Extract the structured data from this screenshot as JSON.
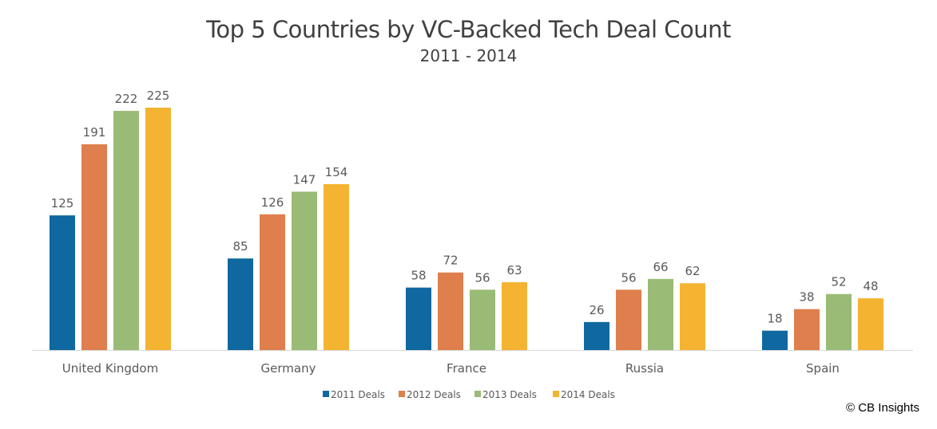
{
  "chart_data": {
    "type": "bar",
    "title": "Top 5 Countries by VC-Backed Tech Deal Count",
    "subtitle": "2011 - 2014",
    "categories": [
      "United Kingdom",
      "Germany",
      "France",
      "Russia",
      "Spain"
    ],
    "series": [
      {
        "name": "2011 Deals",
        "color": "#1068a0",
        "values": [
          125,
          85,
          58,
          26,
          18
        ]
      },
      {
        "name": "2012 Deals",
        "color": "#de7f4d",
        "values": [
          191,
          126,
          72,
          56,
          38
        ]
      },
      {
        "name": "2013 Deals",
        "color": "#99bb75",
        "values": [
          222,
          147,
          56,
          66,
          52
        ]
      },
      {
        "name": "2014 Deals",
        "color": "#f4b331",
        "values": [
          225,
          154,
          63,
          62,
          48
        ]
      }
    ],
    "ylim": [
      0,
      225
    ],
    "grid": false,
    "legend_position": "bottom",
    "data_labels": true
  },
  "credit": "© CB Insights"
}
